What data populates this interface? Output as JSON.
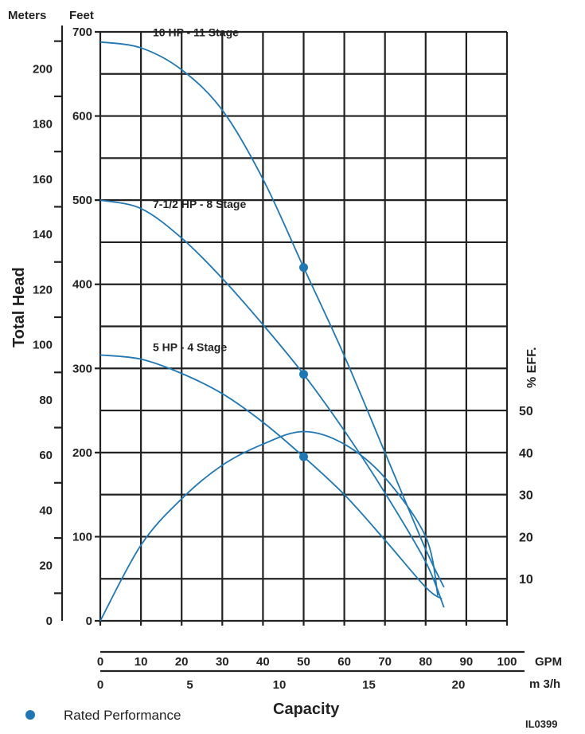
{
  "chart_data": {
    "type": "line",
    "xlabel": "Capacity",
    "ylabel": "Total Head",
    "x_unit": "GPM",
    "x2_unit": "m 3/h",
    "y_unit": "Feet",
    "y2_unit": "Meters",
    "y_right_label": "% EFF.",
    "xlim": [
      0,
      100
    ],
    "ylim": [
      0,
      700
    ],
    "x_ticks": [
      0,
      10,
      20,
      30,
      40,
      50,
      60,
      70,
      80,
      90,
      100
    ],
    "x2_ticks": [
      0,
      5,
      10,
      15,
      20
    ],
    "y_ticks": [
      0,
      100,
      200,
      300,
      400,
      500,
      600,
      700
    ],
    "meters_ticks": [
      0,
      20,
      40,
      60,
      80,
      100,
      120,
      140,
      160,
      180,
      200
    ],
    "eff_ticks": [
      10,
      20,
      30,
      40,
      50
    ],
    "grid": true,
    "series": [
      {
        "name": "10 HP - 11 Stage",
        "x": [
          0,
          10,
          20,
          30,
          40,
          50,
          60,
          70,
          80,
          84.5
        ],
        "y": [
          688,
          681,
          655,
          607,
          525,
          420,
          315,
          200,
          85,
          40
        ]
      },
      {
        "name": "7-1/2 HP - 8 Stage",
        "x": [
          0,
          10,
          20,
          30,
          40,
          50,
          60,
          70,
          80,
          84.5
        ],
        "y": [
          500,
          490,
          455,
          407,
          352,
          293,
          226,
          152,
          70,
          16
        ]
      },
      {
        "name": "5 HP - 4 Stage",
        "x": [
          0,
          10,
          20,
          30,
          40,
          50,
          60,
          70,
          80,
          84
        ],
        "y": [
          316,
          311,
          294,
          270,
          236,
          195,
          150,
          96,
          40,
          26
        ]
      },
      {
        "name": "Efficiency",
        "unit": "%",
        "x": [
          0,
          10,
          20,
          30,
          40,
          50,
          60,
          70,
          80,
          83
        ],
        "y": [
          0,
          18,
          29,
          37,
          42,
          45,
          42,
          34,
          20,
          6
        ]
      }
    ],
    "rated_points": [
      {
        "x": 50,
        "y": 420
      },
      {
        "x": 50,
        "y": 293
      },
      {
        "x": 50,
        "y": 195
      }
    ],
    "legend": {
      "label": "Rated Performance",
      "position": "bottom-left"
    },
    "annotation": "IL0399",
    "colors": {
      "curve": "#1f78b4",
      "grid": "#222222"
    }
  }
}
